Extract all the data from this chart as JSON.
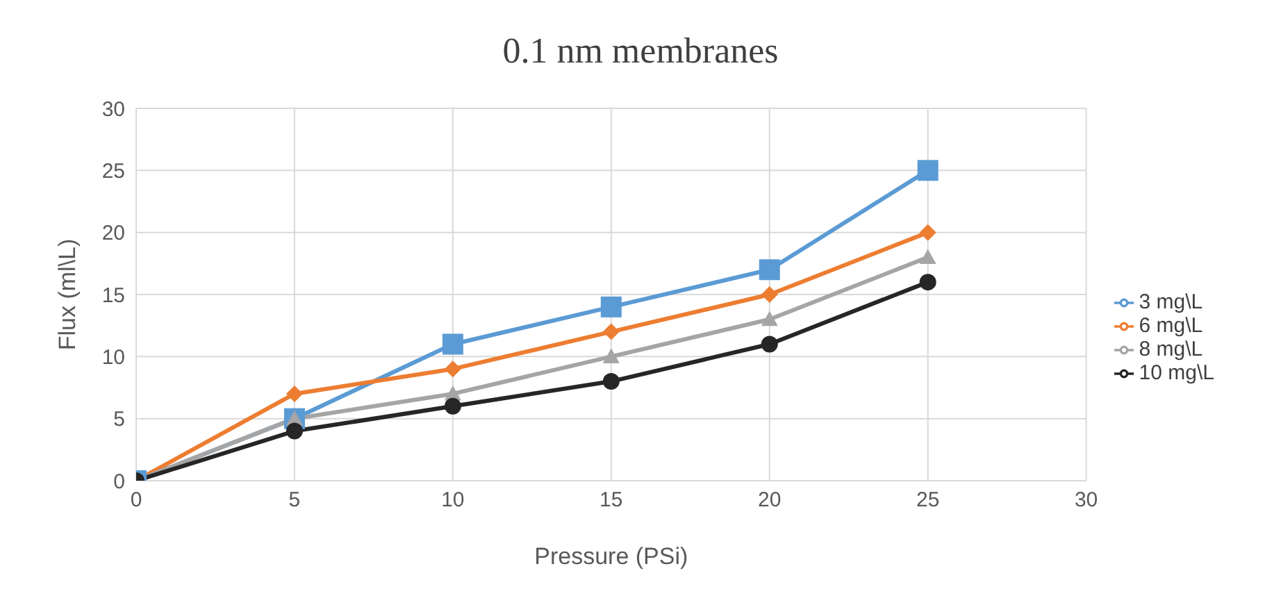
{
  "chart_data": {
    "type": "line",
    "title": "0.1 nm membranes",
    "xlabel": "Pressure (PSi)",
    "ylabel": "Flux (ml\\L)",
    "x": [
      0,
      5,
      10,
      15,
      20,
      25
    ],
    "series": [
      {
        "name": "3 mg\\L",
        "color": "#5b9bd5",
        "marker": "square",
        "values": [
          0,
          5,
          11,
          14,
          17,
          25
        ]
      },
      {
        "name": "6 mg\\L",
        "color": "#ed7d31",
        "marker": "diamond",
        "values": [
          0,
          7,
          9,
          12,
          15,
          20
        ]
      },
      {
        "name": "8 mg\\L",
        "color": "#a5a5a5",
        "marker": "triangle",
        "values": [
          0,
          5,
          7,
          10,
          13,
          18
        ]
      },
      {
        "name": "10 mg\\L",
        "color": "#262626",
        "marker": "circle",
        "values": [
          0,
          4,
          6,
          8,
          11,
          16
        ]
      }
    ],
    "xlim": [
      0,
      30
    ],
    "xticks": [
      0,
      5,
      10,
      15,
      20,
      25,
      30
    ],
    "ylim": [
      0,
      30
    ],
    "yticks": [
      0,
      5,
      10,
      15,
      20,
      25,
      30
    ],
    "grid": true,
    "legend": "right",
    "line_style": "solid"
  }
}
